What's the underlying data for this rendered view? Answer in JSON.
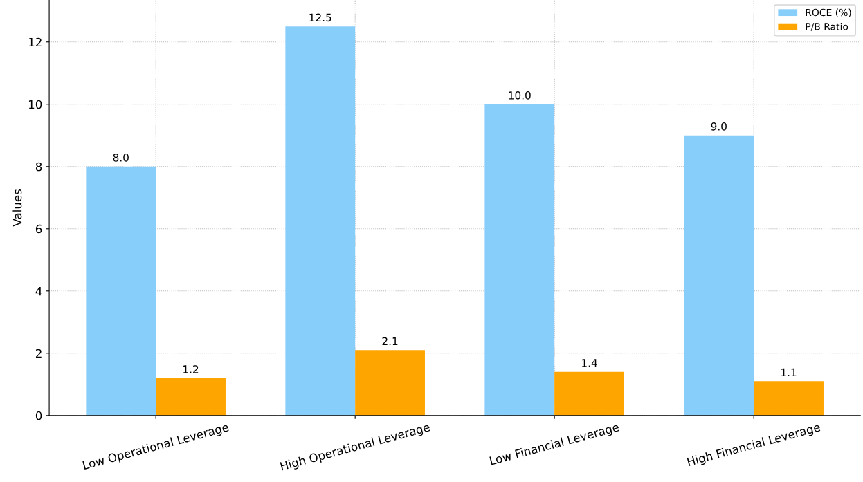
{
  "chart_data": {
    "type": "bar",
    "ylabel": "Values",
    "categories": [
      "Low Operational Leverage",
      "High Operational Leverage",
      "Low Financial Leverage",
      "High Financial Leverage"
    ],
    "series": [
      {
        "name": "ROCE (%)",
        "color": "#87cefa",
        "values": [
          8.0,
          12.5,
          10.0,
          9.0
        ],
        "value_labels": [
          "8.0",
          "12.5",
          "10.0",
          "9.0"
        ]
      },
      {
        "name": "P/B Ratio",
        "color": "#ffa500",
        "values": [
          1.2,
          2.1,
          1.4,
          1.1
        ],
        "value_labels": [
          "1.2",
          "2.1",
          "1.4",
          "1.1"
        ]
      }
    ],
    "ylim": [
      0,
      13.35
    ],
    "yticks": [
      0,
      2,
      4,
      6,
      8,
      10,
      12
    ],
    "grid": true,
    "legend": "top right"
  }
}
